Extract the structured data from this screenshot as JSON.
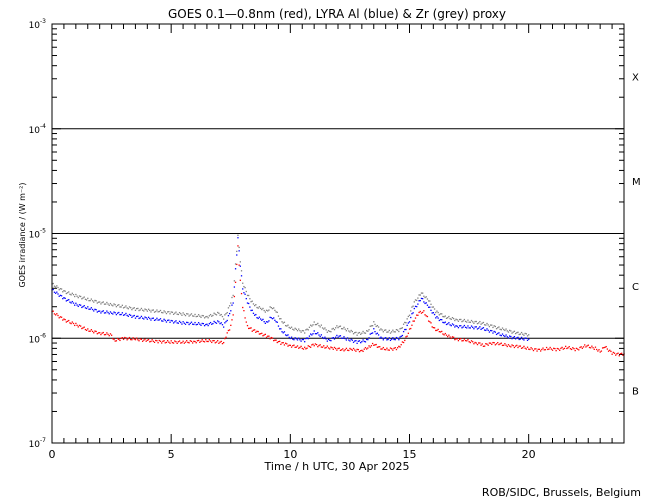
{
  "chart_data": {
    "type": "scatter",
    "title": "GOES 0.1—0.8nm (red), LYRA Al (blue) & Zr (grey) proxy",
    "xlabel": "Time / h UTC, 30 Apr 2025",
    "ylabel": "GOES irradiance / (W m⁻²)",
    "yscale": "log",
    "xlim": [
      0,
      24
    ],
    "ylim": [
      1e-07,
      0.001
    ],
    "x_ticks": [
      0,
      5,
      10,
      15,
      20
    ],
    "y_tick_labels": [
      {
        "value": 1e-07,
        "mantissa": "10",
        "exp": "-7"
      },
      {
        "value": 1e-06,
        "mantissa": "10",
        "exp": "-6"
      },
      {
        "value": 1e-05,
        "mantissa": "10",
        "exp": "-5"
      },
      {
        "value": 0.0001,
        "mantissa": "10",
        "exp": "-4"
      },
      {
        "value": 0.001,
        "mantissa": "10",
        "exp": "-3"
      }
    ],
    "flare_classes": [
      {
        "label": "B",
        "center": 3.16e-07
      },
      {
        "label": "C",
        "center": 3.16e-06
      },
      {
        "label": "M",
        "center": 3.16e-05
      },
      {
        "label": "X",
        "center": 0.000316
      }
    ],
    "class_lines": [
      1e-06,
      1e-05,
      0.0001
    ],
    "series": [
      {
        "color": "#ff0000",
        "x": [
          0.0,
          0.5,
          1.0,
          1.5,
          2.0,
          2.5,
          2.6,
          3.0,
          3.5,
          4.0,
          4.5,
          5.0,
          5.5,
          6.0,
          6.5,
          7.0,
          7.2,
          7.3,
          7.5,
          7.6,
          7.7,
          7.8,
          7.9,
          8.0,
          8.1,
          8.2,
          8.4,
          8.6,
          8.8,
          9.0,
          9.2,
          9.4,
          9.6,
          9.8,
          10.0,
          10.3,
          10.6,
          11.0,
          11.4,
          11.8,
          12.2,
          12.6,
          13.0,
          13.3,
          13.5,
          13.7,
          14.0,
          14.5,
          14.8,
          15.0,
          15.2,
          15.4,
          15.6,
          15.8,
          16.0,
          16.3,
          16.6,
          17.0,
          17.4,
          17.8,
          18.0,
          18.1,
          18.4,
          18.8,
          19.2,
          19.6,
          20.0,
          20.4,
          20.8,
          21.2,
          21.6,
          22.0,
          22.4,
          22.8,
          23.0,
          23.2,
          23.5,
          23.8,
          24.0
        ],
        "y": [
          1.8e-06,
          1.5e-06,
          1.35e-06,
          1.2e-06,
          1.12e-06,
          1.08e-06,
          9.5e-07,
          1e-06,
          9.8e-07,
          9.5e-07,
          9.3e-07,
          9.2e-07,
          9.2e-07,
          9.3e-07,
          9.5e-07,
          9.2e-07,
          9e-07,
          1.05e-06,
          1.3e-06,
          1.7e-06,
          3.5e-06,
          7.5e-06,
          3.5e-06,
          2e-06,
          1.6e-06,
          1.3e-06,
          1.2e-06,
          1.15e-06,
          1.1e-06,
          1.05e-06,
          1e-06,
          9.5e-07,
          9e-07,
          8.8e-07,
          8.5e-07,
          8.3e-07,
          8e-07,
          8.7e-07,
          8.3e-07,
          8e-07,
          7.8e-07,
          7.8e-07,
          7.6e-07,
          8.3e-07,
          8.8e-07,
          8.2e-07,
          7.8e-07,
          8e-07,
          9.5e-07,
          1.2e-06,
          1.5e-06,
          1.75e-06,
          1.8e-06,
          1.5e-06,
          1.25e-06,
          1.15e-06,
          1.05e-06,
          9.8e-07,
          9.5e-07,
          9e-07,
          8.8e-07,
          8.5e-07,
          9e-07,
          8.8e-07,
          8.5e-07,
          8.3e-07,
          8e-07,
          7.7e-07,
          8e-07,
          7.8e-07,
          8.2e-07,
          7.8e-07,
          8.5e-07,
          8e-07,
          7.5e-07,
          8.3e-07,
          7.2e-07,
          7e-07,
          7.1e-07
        ]
      },
      {
        "color": "#0000ff",
        "x": [
          0.0,
          0.5,
          1.0,
          1.5,
          2.0,
          2.5,
          3.0,
          3.5,
          4.0,
          4.5,
          5.0,
          5.5,
          6.0,
          6.5,
          7.0,
          7.2,
          7.4,
          7.6,
          7.7,
          7.8,
          7.9,
          8.0,
          8.2,
          8.4,
          8.6,
          8.8,
          9.0,
          9.2,
          9.4,
          9.6,
          9.8,
          10.0,
          10.3,
          10.6,
          11.0,
          11.3,
          11.6,
          12.0,
          12.4,
          12.8,
          13.2,
          13.5,
          13.8,
          14.2,
          14.6,
          14.9,
          15.2,
          15.5,
          15.8,
          16.1,
          16.5,
          17.0,
          17.5,
          18.0,
          18.5,
          19.0,
          19.5,
          20.0
        ],
        "y": [
          2.9e-06,
          2.4e-06,
          2.1e-06,
          1.95e-06,
          1.8e-06,
          1.75e-06,
          1.7e-06,
          1.6e-06,
          1.55e-06,
          1.5e-06,
          1.45e-06,
          1.4e-06,
          1.38e-06,
          1.35e-06,
          1.45e-06,
          1.3e-06,
          1.6e-06,
          2.2e-06,
          4.5e-06,
          9e-06,
          5e-06,
          3e-06,
          2.2e-06,
          1.8e-06,
          1.6e-06,
          1.5e-06,
          1.4e-06,
          1.6e-06,
          1.45e-06,
          1.2e-06,
          1.1e-06,
          1e-06,
          9.8e-07,
          9.5e-07,
          1.15e-06,
          1.05e-06,
          9.5e-07,
          1.05e-06,
          9.8e-07,
          9.2e-07,
          9.5e-07,
          1.2e-06,
          1e-06,
          9.8e-07,
          1e-06,
          1.3e-06,
          1.9e-06,
          2.4e-06,
          2e-06,
          1.6e-06,
          1.4e-06,
          1.3e-06,
          1.28e-06,
          1.25e-06,
          1.15e-06,
          1.05e-06,
          1e-06,
          9.8e-07
        ]
      },
      {
        "color": "#808080",
        "x": [
          0.0,
          0.5,
          1.0,
          1.5,
          2.0,
          2.5,
          3.0,
          3.5,
          4.0,
          4.5,
          5.0,
          5.5,
          6.0,
          6.5,
          7.0,
          7.2,
          7.4,
          7.6,
          7.7,
          7.8,
          7.9,
          8.0,
          8.2,
          8.4,
          8.6,
          8.8,
          9.0,
          9.2,
          9.4,
          9.6,
          9.8,
          10.0,
          10.3,
          10.6,
          11.0,
          11.3,
          11.6,
          12.0,
          12.4,
          12.8,
          13.2,
          13.5,
          13.8,
          14.2,
          14.6,
          14.9,
          15.2,
          15.5,
          15.8,
          16.1,
          16.5,
          17.0,
          17.5,
          18.0,
          18.5,
          19.0,
          19.5,
          20.0
        ],
        "y": [
          3.3e-06,
          2.8e-06,
          2.55e-06,
          2.35e-06,
          2.2e-06,
          2.1e-06,
          2e-06,
          1.9e-06,
          1.85e-06,
          1.8e-06,
          1.75e-06,
          1.7e-06,
          1.65e-06,
          1.6e-06,
          1.75e-06,
          1.55e-06,
          1.9e-06,
          2.6e-06,
          5e-06,
          9.5e-06,
          5.5e-06,
          3.4e-06,
          2.6e-06,
          2.2e-06,
          2e-06,
          1.9e-06,
          1.8e-06,
          2e-06,
          1.8e-06,
          1.5e-06,
          1.35e-06,
          1.25e-06,
          1.2e-06,
          1.15e-06,
          1.4e-06,
          1.3e-06,
          1.15e-06,
          1.3e-06,
          1.2e-06,
          1.1e-06,
          1.15e-06,
          1.4e-06,
          1.2e-06,
          1.15e-06,
          1.2e-06,
          1.5e-06,
          2.2e-06,
          2.7e-06,
          2.3e-06,
          1.8e-06,
          1.6e-06,
          1.5e-06,
          1.45e-06,
          1.4e-06,
          1.3e-06,
          1.2e-06,
          1.12e-06,
          1.08e-06
        ]
      }
    ],
    "credit": "ROB/SIDC, Brussels, Belgium"
  }
}
